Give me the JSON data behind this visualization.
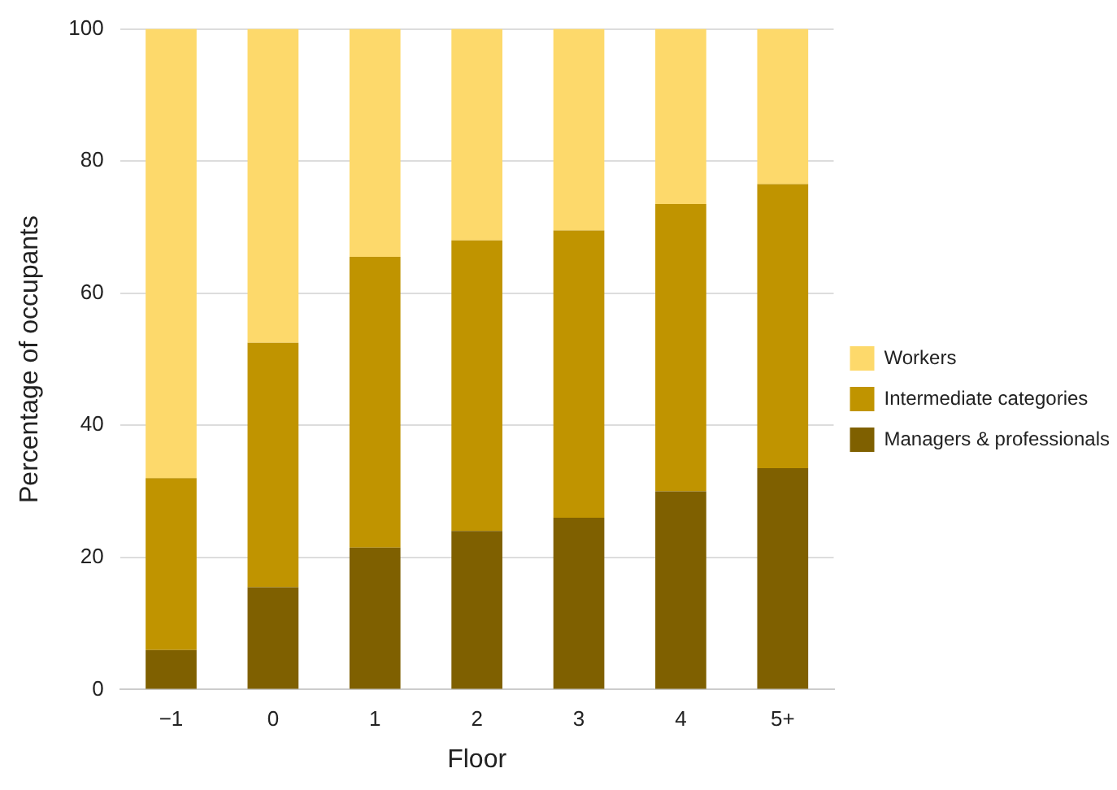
{
  "chart_data": {
    "type": "bar",
    "stacked": true,
    "xlabel": "Floor",
    "ylabel": "Percentage of occupants",
    "categories": [
      "−1",
      "0",
      "1",
      "2",
      "3",
      "4",
      "5+"
    ],
    "series": [
      {
        "name": "Managers & professionals",
        "color": "#7f6000",
        "values": [
          6,
          15.5,
          21.5,
          24,
          26,
          30,
          33.5
        ]
      },
      {
        "name": "Intermediate categories",
        "color": "#c09400",
        "values": [
          26,
          37,
          44,
          44,
          43.5,
          43.5,
          43
        ]
      },
      {
        "name": "Workers",
        "color": "#fdd96b",
        "values": [
          68,
          47.5,
          34.5,
          32,
          30.5,
          26.5,
          23.5
        ]
      }
    ],
    "ylim": [
      0,
      100
    ],
    "yticks": [
      0,
      20,
      40,
      60,
      80,
      100
    ],
    "grid": "y",
    "legend": "right"
  }
}
